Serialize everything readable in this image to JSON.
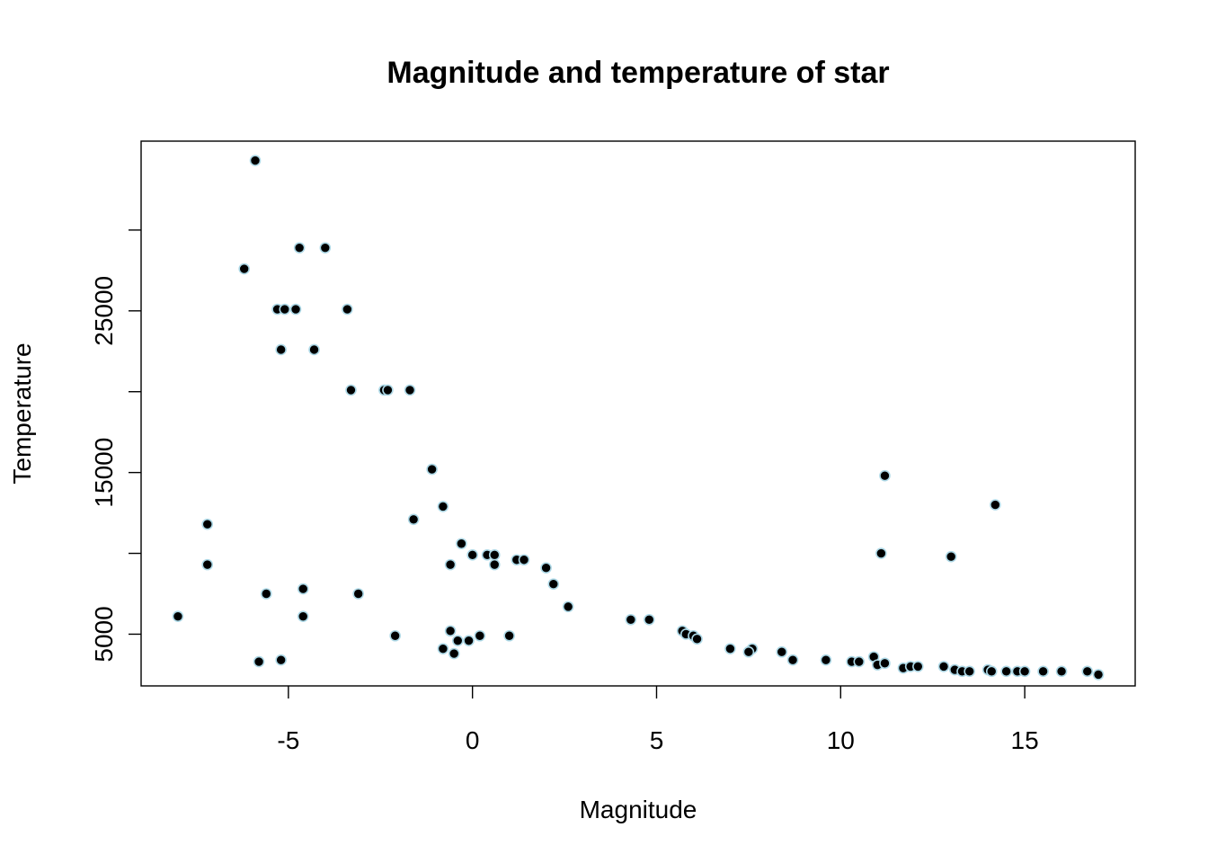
{
  "chart_data": {
    "type": "scatter",
    "title": "Magnitude and temperature of star",
    "xlabel": "Magnitude",
    "ylabel": "Temperature",
    "xlim": [
      -9,
      18
    ],
    "ylim": [
      1800,
      35500
    ],
    "xticks": [
      -5,
      0,
      5,
      10,
      15
    ],
    "yticks": [
      5000,
      10000,
      15000,
      20000,
      25000,
      30000
    ],
    "ytick_labels": [
      "5000",
      "",
      "15000",
      "",
      "25000",
      ""
    ],
    "marker_fill": "#000000",
    "marker_edge": "#add8e6",
    "points": [
      {
        "x": -5.9,
        "y": 34300
      },
      {
        "x": -6.2,
        "y": 27600
      },
      {
        "x": -4.7,
        "y": 28900
      },
      {
        "x": -4.0,
        "y": 28900
      },
      {
        "x": -5.3,
        "y": 25100
      },
      {
        "x": -5.1,
        "y": 25100
      },
      {
        "x": -4.8,
        "y": 25100
      },
      {
        "x": -3.4,
        "y": 25100
      },
      {
        "x": -5.2,
        "y": 22600
      },
      {
        "x": -4.3,
        "y": 22600
      },
      {
        "x": -3.3,
        "y": 20100
      },
      {
        "x": -2.4,
        "y": 20100
      },
      {
        "x": -2.3,
        "y": 20100
      },
      {
        "x": -1.7,
        "y": 20100
      },
      {
        "x": -1.1,
        "y": 15200
      },
      {
        "x": -0.8,
        "y": 12900
      },
      {
        "x": -1.6,
        "y": 12100
      },
      {
        "x": -7.2,
        "y": 11800
      },
      {
        "x": -0.3,
        "y": 10600
      },
      {
        "x": 0.0,
        "y": 9900
      },
      {
        "x": 0.4,
        "y": 9900
      },
      {
        "x": 0.6,
        "y": 9900
      },
      {
        "x": 0.6,
        "y": 9300
      },
      {
        "x": -0.6,
        "y": 9300
      },
      {
        "x": 1.2,
        "y": 9600
      },
      {
        "x": 1.4,
        "y": 9600
      },
      {
        "x": -7.2,
        "y": 9300
      },
      {
        "x": 2.0,
        "y": 9100
      },
      {
        "x": 2.2,
        "y": 8100
      },
      {
        "x": -4.6,
        "y": 7800
      },
      {
        "x": -5.6,
        "y": 7500
      },
      {
        "x": -3.1,
        "y": 7500
      },
      {
        "x": 2.6,
        "y": 6700
      },
      {
        "x": -8.0,
        "y": 6100
      },
      {
        "x": -4.6,
        "y": 6100
      },
      {
        "x": 4.3,
        "y": 5900
      },
      {
        "x": 4.8,
        "y": 5900
      },
      {
        "x": -0.6,
        "y": 5200
      },
      {
        "x": -2.1,
        "y": 4900
      },
      {
        "x": 0.2,
        "y": 4900
      },
      {
        "x": 1.0,
        "y": 4900
      },
      {
        "x": 5.7,
        "y": 5200
      },
      {
        "x": 5.8,
        "y": 5000
      },
      {
        "x": 6.0,
        "y": 4900
      },
      {
        "x": 6.1,
        "y": 4700
      },
      {
        "x": -0.4,
        "y": 4600
      },
      {
        "x": -0.1,
        "y": 4600
      },
      {
        "x": -0.8,
        "y": 4100
      },
      {
        "x": -0.5,
        "y": 3800
      },
      {
        "x": 7.0,
        "y": 4100
      },
      {
        "x": 7.6,
        "y": 4100
      },
      {
        "x": 7.5,
        "y": 3900
      },
      {
        "x": 8.4,
        "y": 3900
      },
      {
        "x": -5.2,
        "y": 3400
      },
      {
        "x": -5.8,
        "y": 3300
      },
      {
        "x": 8.7,
        "y": 3400
      },
      {
        "x": 9.6,
        "y": 3400
      },
      {
        "x": 10.3,
        "y": 3300
      },
      {
        "x": 10.5,
        "y": 3300
      },
      {
        "x": 10.9,
        "y": 3600
      },
      {
        "x": 11.0,
        "y": 3100
      },
      {
        "x": 11.2,
        "y": 3200
      },
      {
        "x": 11.7,
        "y": 2900
      },
      {
        "x": 11.9,
        "y": 3000
      },
      {
        "x": 12.1,
        "y": 3000
      },
      {
        "x": 12.8,
        "y": 3000
      },
      {
        "x": 13.1,
        "y": 2800
      },
      {
        "x": 13.3,
        "y": 2700
      },
      {
        "x": 13.5,
        "y": 2700
      },
      {
        "x": 14.0,
        "y": 2800
      },
      {
        "x": 14.1,
        "y": 2700
      },
      {
        "x": 14.5,
        "y": 2700
      },
      {
        "x": 14.8,
        "y": 2700
      },
      {
        "x": 15.0,
        "y": 2700
      },
      {
        "x": 15.5,
        "y": 2700
      },
      {
        "x": 16.0,
        "y": 2700
      },
      {
        "x": 16.7,
        "y": 2700
      },
      {
        "x": 17.0,
        "y": 2500
      },
      {
        "x": 11.2,
        "y": 14800
      },
      {
        "x": 14.2,
        "y": 13000
      },
      {
        "x": 11.1,
        "y": 10000
      },
      {
        "x": 13.0,
        "y": 9800
      }
    ]
  }
}
